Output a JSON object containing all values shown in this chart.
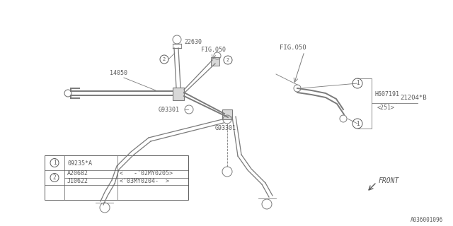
{
  "bg_color": "#ffffff",
  "line_color": "#7a7a7a",
  "text_color": "#5a5a5a",
  "diagram_label": "A036001096",
  "figsize": [
    6.4,
    3.2
  ],
  "dpi": 100,
  "xlim": [
    0,
    640
  ],
  "ylim": [
    0,
    320
  ]
}
